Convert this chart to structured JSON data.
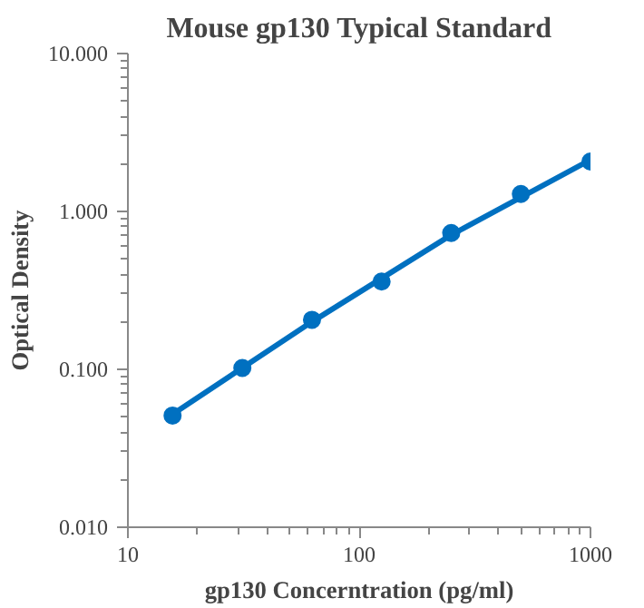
{
  "chart_data": {
    "type": "scatter",
    "title": "Mouse gp130 Typical Standard",
    "xlabel": "gp130 Concerntration (pg/ml)",
    "ylabel": "Optical Density",
    "log": "xy",
    "grid": false,
    "marker": "circle",
    "xlim": [
      10,
      1000
    ],
    "xticks": [
      10,
      100,
      1000
    ],
    "ylim": [
      0.01,
      10
    ],
    "yticks": [
      {
        "value": 0.01,
        "label": "0.010"
      },
      {
        "value": 0.1,
        "label": "0.100"
      },
      {
        "value": 1,
        "label": "1.000"
      },
      {
        "value": 10,
        "label": "10.000"
      }
    ],
    "series": [
      {
        "type": "line",
        "color": "#0070c0",
        "marker": "none",
        "line_style": "solid",
        "x": [
          15.6,
          62.5,
          250,
          1000
        ],
        "values": [
          0.052,
          0.2,
          0.71,
          2.12
        ]
      },
      {
        "color": "#0070c0",
        "x": [
          15.6,
          31.25,
          62.5,
          125,
          250,
          500,
          1000
        ],
        "values": [
          0.051,
          0.102,
          0.206,
          0.36,
          0.73,
          1.29,
          2.07
        ]
      }
    ]
  }
}
